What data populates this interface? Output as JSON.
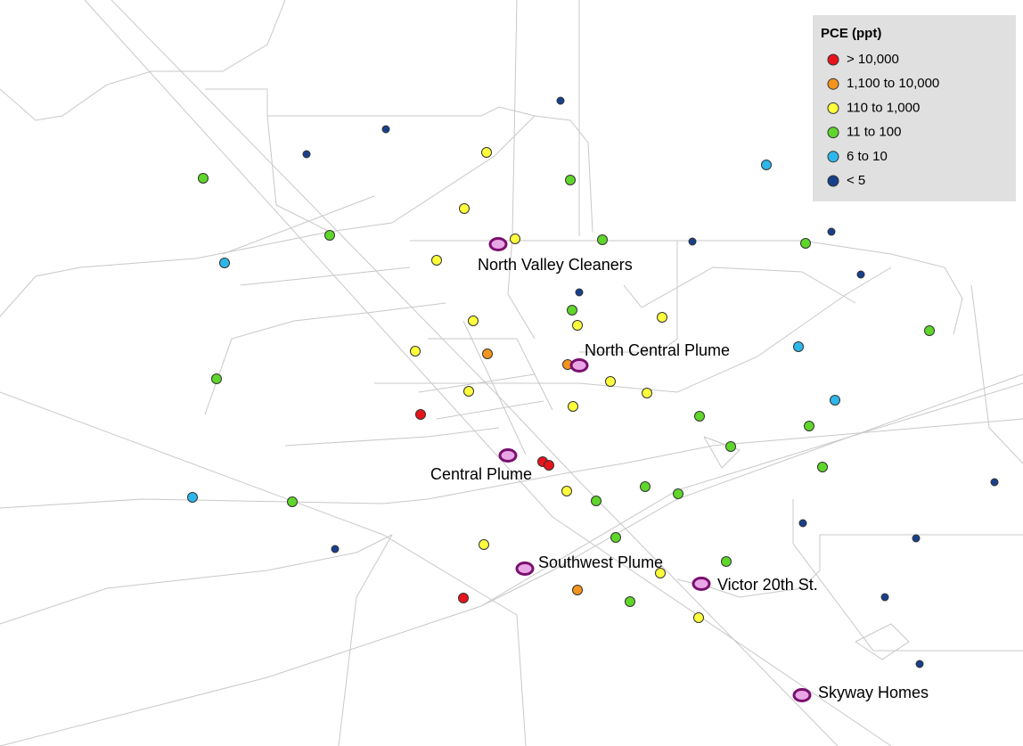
{
  "legend": {
    "title": "PCE (ppt)",
    "items": [
      {
        "label": "> 10,000",
        "color": "#e8141c"
      },
      {
        "label": "1,100 to 10,000",
        "color": "#f2941e"
      },
      {
        "label": "110 to 1,000",
        "color": "#ffff3c"
      },
      {
        "label": "11 to 100",
        "color": "#5ed62a"
      },
      {
        "label": "6 to 10",
        "color": "#2cb7ea"
      },
      {
        "label": "< 5",
        "color": "#17408c"
      }
    ]
  },
  "sites": [
    {
      "label": "North Valley Cleaners"
    },
    {
      "label": "North Central Plume"
    },
    {
      "label": "Central Plume"
    },
    {
      "label": "Southwest Plume"
    },
    {
      "label": "Victor 20th St."
    },
    {
      "label": "Skyway Homes"
    }
  ]
}
